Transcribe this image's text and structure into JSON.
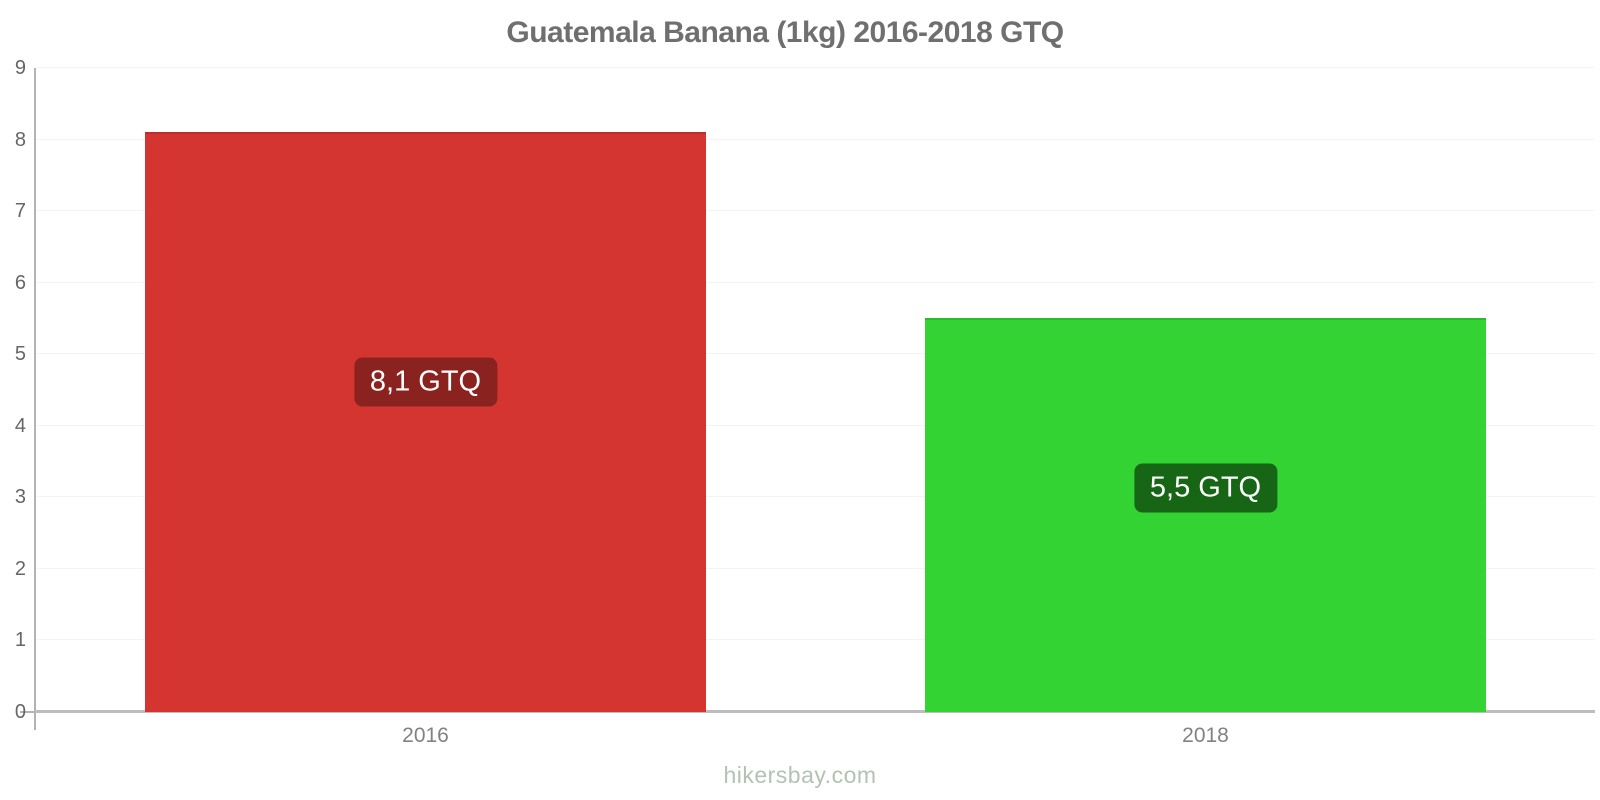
{
  "title": "Guatemala Banana (1kg) 2016-2018 GTQ",
  "footer": "hikersbay.com",
  "chart_data": {
    "type": "bar",
    "title": "Guatemala Banana (1kg) 2016-2018 GTQ",
    "categories": [
      "2016",
      "2018"
    ],
    "values": [
      8.1,
      5.5
    ],
    "value_labels": [
      "8,1 GTQ",
      "5,5 GTQ"
    ],
    "bar_colors": [
      "#d53531",
      "#33d333"
    ],
    "value_label_bg_colors": [
      "#8a231f",
      "#166616"
    ],
    "xlabel": "",
    "ylabel": "",
    "ylim": [
      0,
      9
    ],
    "yticks": [
      0,
      1,
      2,
      3,
      4,
      5,
      6,
      7,
      8,
      9
    ],
    "grid": true,
    "legend": false,
    "watermark": "hikersbay.com"
  },
  "colors": {
    "axis": "#b3b3b3",
    "baseline": "#bdbdbd",
    "gridline": "#f4f4f4",
    "tick_text": "#666666",
    "category_text": "#828282",
    "title_text": "#6f6f6f",
    "watermark_text": "#b2c2b3",
    "value_text": "#ffffff",
    "background": "#ffffff"
  }
}
